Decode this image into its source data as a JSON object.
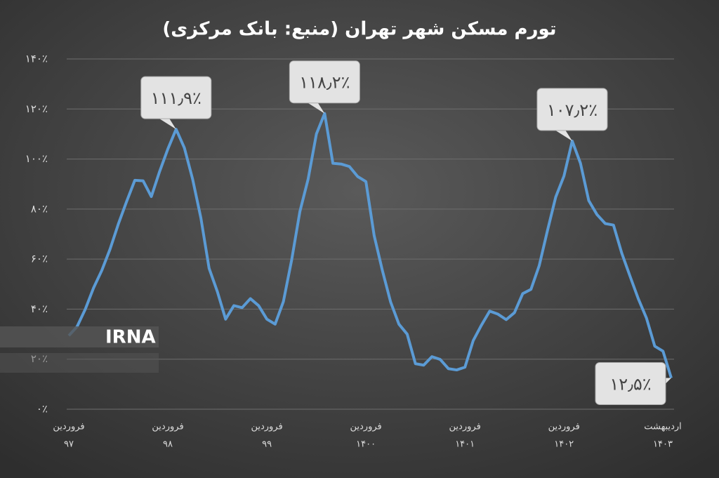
{
  "chart_data": {
    "type": "line",
    "title": "تورم مسکن شهر تهران (منبع: بانک مرکزی)",
    "watermark": "IRNA",
    "categories": [
      [
        "فروردین",
        "۹۷"
      ],
      null,
      null,
      null,
      null,
      null,
      null,
      null,
      null,
      null,
      null,
      null,
      [
        "فروردین",
        "۹۸"
      ],
      null,
      null,
      null,
      null,
      null,
      null,
      null,
      null,
      null,
      null,
      null,
      [
        "فروردین",
        "۹۹"
      ],
      null,
      null,
      null,
      null,
      null,
      null,
      null,
      null,
      null,
      null,
      null,
      [
        "فروردین",
        "۱۴۰۰"
      ],
      null,
      null,
      null,
      null,
      null,
      null,
      null,
      null,
      null,
      null,
      null,
      [
        "فروردین",
        "۱۴۰۱"
      ],
      null,
      null,
      null,
      null,
      null,
      null,
      null,
      null,
      null,
      null,
      null,
      [
        "فروردین",
        "۱۴۰۲"
      ],
      null,
      null,
      null,
      null,
      null,
      null,
      null,
      null,
      null,
      null,
      null,
      null,
      [
        "اردیبهشت",
        "۱۴۰۳"
      ]
    ],
    "series": [
      {
        "color": "#5b9bd5",
        "values": [
          29.4,
          33,
          40,
          48.5,
          55.5,
          64,
          74,
          83,
          91.5,
          91.3,
          85,
          95,
          104,
          111.9,
          104.5,
          92,
          76.5,
          56.3,
          47,
          36,
          41.4,
          40.6,
          44.2,
          41.4,
          36,
          34,
          43,
          59.6,
          79,
          92,
          110,
          118.2,
          98.3,
          98,
          97,
          93,
          91,
          69.4,
          55.4,
          42.8,
          34,
          30,
          18.2,
          17.6,
          21,
          19.9,
          16.2,
          15.7,
          16.8,
          27.4,
          33.6,
          39.2,
          38,
          35.8,
          38.6,
          46.2,
          47.9,
          57.4,
          71.4,
          84.8,
          93.2,
          107.2,
          98.3,
          83.4,
          77.8,
          74.2,
          73.6,
          62.4,
          53.2,
          44.2,
          36.4,
          25.2,
          23.2,
          12.5
        ],
        "value_labels": [
          null,
          null,
          null,
          null,
          null,
          null,
          null,
          null,
          null,
          null,
          null,
          null,
          null,
          "۱۱۱٫۹٪",
          null,
          null,
          null,
          null,
          null,
          null,
          null,
          null,
          null,
          null,
          null,
          null,
          null,
          null,
          null,
          null,
          null,
          "۱۱۸٫۲٪",
          null,
          null,
          null,
          null,
          null,
          null,
          null,
          null,
          null,
          null,
          null,
          null,
          null,
          null,
          null,
          null,
          null,
          null,
          null,
          null,
          null,
          null,
          null,
          null,
          null,
          null,
          null,
          null,
          null,
          "۱۰۷٫۲٪",
          null,
          null,
          null,
          null,
          null,
          null,
          null,
          null,
          null,
          null,
          null,
          "۱۲٫۵٪"
        ]
      }
    ],
    "ylim": [
      0,
      140
    ],
    "yticks": [
      {
        "value": 0,
        "label": "۰٪"
      },
      {
        "value": 20,
        "label": "۲۰٪"
      },
      {
        "value": 40,
        "label": "۴۰٪"
      },
      {
        "value": 60,
        "label": "۶۰٪"
      },
      {
        "value": 80,
        "label": "۸۰٪"
      },
      {
        "value": 100,
        "label": "۱۰۰٪"
      },
      {
        "value": 120,
        "label": "۱۲۰٪"
      },
      {
        "value": 140,
        "label": "۱۴۰٪"
      }
    ],
    "grid": true
  }
}
